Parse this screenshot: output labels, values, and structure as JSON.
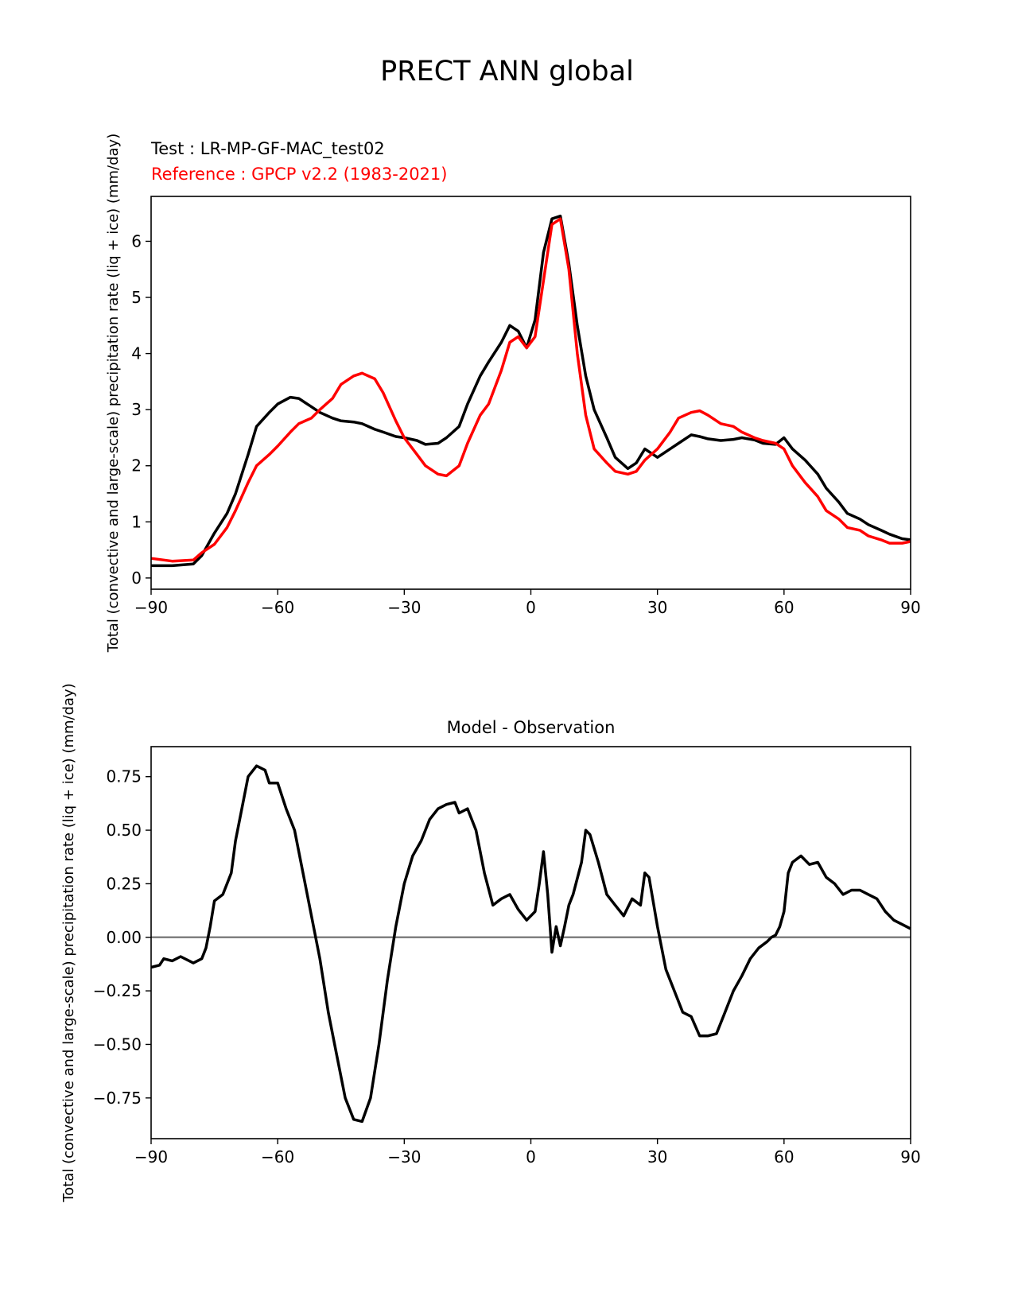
{
  "figure": {
    "title": "PRECT ANN global",
    "test_label": "Test : LR-MP-GF-MAC_test02",
    "reference_label": "Reference : GPCP v2.2 (1983-2021)",
    "colors": {
      "test": "#000000",
      "reference": "#ff0000",
      "zero_line": "#808080"
    }
  },
  "chart_data": [
    {
      "type": "line",
      "title": "",
      "ylabel": "Total (convective and large-scale) precipitation rate (liq + ice) (mm/day)",
      "xlabel": "",
      "xlim": [
        -90,
        90
      ],
      "ylim": [
        -0.2,
        6.8
      ],
      "xticks": [
        "−90",
        "−60",
        "−30",
        "0",
        "30",
        "60",
        "90"
      ],
      "xtick_values": [
        -90,
        -60,
        -30,
        0,
        30,
        60,
        90
      ],
      "yticks": [
        "0",
        "1",
        "2",
        "3",
        "4",
        "5",
        "6"
      ],
      "ytick_values": [
        0,
        1,
        2,
        3,
        4,
        5,
        6
      ],
      "x": [
        -90,
        -85,
        -80,
        -78,
        -75,
        -72,
        -70,
        -67,
        -65,
        -62,
        -60,
        -57,
        -55,
        -52,
        -50,
        -47,
        -45,
        -42,
        -40,
        -37,
        -35,
        -32,
        -30,
        -27,
        -25,
        -22,
        -20,
        -17,
        -15,
        -12,
        -10,
        -7,
        -5,
        -3,
        -1,
        1,
        3,
        5,
        7,
        9,
        11,
        13,
        15,
        18,
        20,
        23,
        25,
        27,
        30,
        33,
        35,
        38,
        40,
        42,
        45,
        48,
        50,
        53,
        55,
        58,
        60,
        62,
        65,
        68,
        70,
        73,
        75,
        78,
        80,
        83,
        85,
        88,
        90
      ],
      "series": [
        {
          "key": "test",
          "values": [
            0.22,
            0.22,
            0.25,
            0.4,
            0.8,
            1.15,
            1.5,
            2.2,
            2.7,
            2.95,
            3.1,
            3.22,
            3.2,
            3.05,
            2.95,
            2.85,
            2.8,
            2.78,
            2.75,
            2.65,
            2.6,
            2.52,
            2.5,
            2.45,
            2.38,
            2.4,
            2.5,
            2.7,
            3.1,
            3.6,
            3.85,
            4.2,
            4.5,
            4.4,
            4.1,
            4.6,
            5.8,
            6.4,
            6.45,
            5.6,
            4.5,
            3.6,
            3.0,
            2.5,
            2.15,
            1.95,
            2.05,
            2.3,
            2.15,
            2.3,
            2.4,
            2.55,
            2.52,
            2.48,
            2.45,
            2.47,
            2.5,
            2.46,
            2.4,
            2.38,
            2.5,
            2.3,
            2.1,
            1.85,
            1.6,
            1.35,
            1.15,
            1.05,
            0.95,
            0.85,
            0.78,
            0.7,
            0.68
          ]
        },
        {
          "key": "reference",
          "values": [
            0.35,
            0.3,
            0.32,
            0.45,
            0.6,
            0.9,
            1.2,
            1.7,
            2.0,
            2.2,
            2.35,
            2.6,
            2.75,
            2.85,
            3.0,
            3.2,
            3.45,
            3.6,
            3.65,
            3.55,
            3.3,
            2.8,
            2.5,
            2.2,
            2.0,
            1.85,
            1.82,
            2.0,
            2.4,
            2.9,
            3.1,
            3.7,
            4.2,
            4.3,
            4.1,
            4.3,
            5.3,
            6.3,
            6.4,
            5.5,
            4.0,
            2.9,
            2.3,
            2.05,
            1.9,
            1.85,
            1.9,
            2.1,
            2.3,
            2.6,
            2.85,
            2.95,
            2.98,
            2.9,
            2.75,
            2.7,
            2.6,
            2.5,
            2.45,
            2.4,
            2.3,
            2.0,
            1.7,
            1.45,
            1.2,
            1.05,
            0.9,
            0.85,
            0.75,
            0.68,
            0.62,
            0.62,
            0.65
          ]
        }
      ]
    },
    {
      "type": "line",
      "title": "Model - Observation",
      "ylabel": "Total (convective and large-scale) precipitation rate (liq + ice) (mm/day)",
      "xlabel": "",
      "xlim": [
        -90,
        90
      ],
      "ylim": [
        -0.94,
        0.89
      ],
      "xticks": [
        "−90",
        "−60",
        "−30",
        "0",
        "30",
        "60",
        "90"
      ],
      "xtick_values": [
        -90,
        -60,
        -30,
        0,
        30,
        60,
        90
      ],
      "yticks": [
        "0.75",
        "0.50",
        "0.25",
        "0.00",
        "−0.25",
        "−0.50",
        "−0.75"
      ],
      "ytick_values": [
        0.75,
        0.5,
        0.25,
        0,
        -0.25,
        -0.5,
        -0.75
      ],
      "hline": 0,
      "x": [
        -90,
        -88,
        -87,
        -85,
        -83,
        -80,
        -78,
        -77,
        -76,
        -75,
        -73,
        -71,
        -70,
        -68,
        -67,
        -65,
        -63,
        -62,
        -60,
        -58,
        -56,
        -54,
        -52,
        -50,
        -48,
        -46,
        -44,
        -42,
        -40,
        -38,
        -36,
        -34,
        -32,
        -30,
        -28,
        -26,
        -24,
        -22,
        -20,
        -18,
        -17,
        -15,
        -13,
        -11,
        -9,
        -7,
        -5,
        -3,
        -1,
        0,
        1,
        2,
        3,
        4,
        5,
        6,
        7,
        8,
        9,
        10,
        12,
        13,
        14,
        16,
        18,
        20,
        22,
        24,
        26,
        27,
        28,
        30,
        32,
        34,
        36,
        38,
        40,
        42,
        44,
        46,
        48,
        50,
        52,
        54,
        56,
        57,
        58,
        59,
        60,
        61,
        62,
        64,
        66,
        68,
        70,
        72,
        74,
        76,
        78,
        80,
        82,
        84,
        86,
        88,
        90
      ],
      "series": [
        {
          "key": "diff",
          "values": [
            -0.14,
            -0.13,
            -0.1,
            -0.11,
            -0.09,
            -0.12,
            -0.1,
            -0.05,
            0.05,
            0.17,
            0.2,
            0.3,
            0.45,
            0.65,
            0.75,
            0.8,
            0.78,
            0.72,
            0.72,
            0.6,
            0.5,
            0.3,
            0.1,
            -0.1,
            -0.35,
            -0.55,
            -0.75,
            -0.85,
            -0.86,
            -0.75,
            -0.5,
            -0.2,
            0.05,
            0.25,
            0.38,
            0.45,
            0.55,
            0.6,
            0.62,
            0.63,
            0.58,
            0.6,
            0.5,
            0.3,
            0.15,
            0.18,
            0.2,
            0.13,
            0.08,
            0.1,
            0.12,
            0.25,
            0.4,
            0.2,
            -0.07,
            0.05,
            -0.04,
            0.05,
            0.15,
            0.2,
            0.35,
            0.5,
            0.48,
            0.35,
            0.2,
            0.15,
            0.1,
            0.18,
            0.15,
            0.3,
            0.28,
            0.05,
            -0.15,
            -0.25,
            -0.35,
            -0.37,
            -0.46,
            -0.46,
            -0.45,
            -0.35,
            -0.25,
            -0.18,
            -0.1,
            -0.05,
            -0.02,
            0.0,
            0.01,
            0.05,
            0.12,
            0.3,
            0.35,
            0.38,
            0.34,
            0.35,
            0.28,
            0.25,
            0.2,
            0.22,
            0.22,
            0.2,
            0.18,
            0.12,
            0.08,
            0.06,
            0.04
          ]
        }
      ]
    }
  ]
}
